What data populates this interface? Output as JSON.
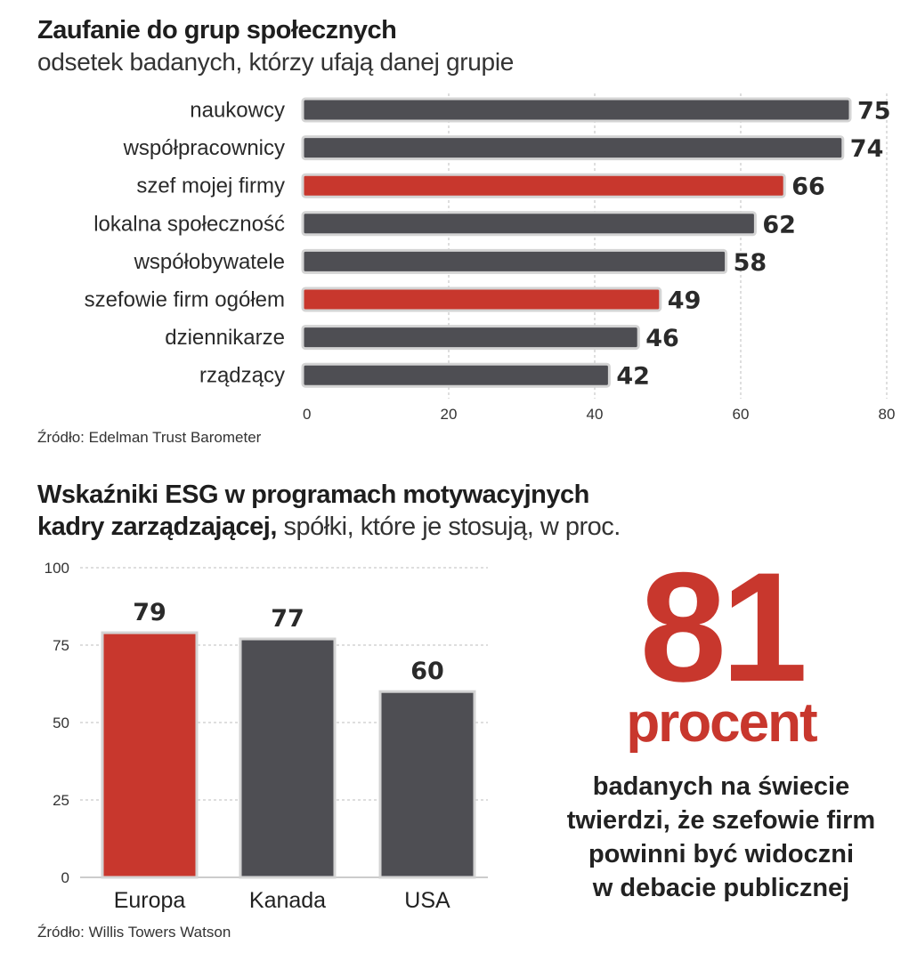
{
  "chart_data": [
    {
      "type": "bar",
      "orientation": "horizontal",
      "title": "Zaufanie do grup społecznych",
      "subtitle": "odsetek badanych, którzy ufają danej grupie",
      "categories": [
        "naukowcy",
        "współpracownicy",
        "szef mojej firmy",
        "lokalna społeczność",
        "współobywatele",
        "szefowie firm ogółem",
        "dziennikarze",
        "rządzący"
      ],
      "values": [
        75,
        74,
        66,
        62,
        58,
        49,
        46,
        42
      ],
      "highlighted": [
        false,
        false,
        true,
        false,
        false,
        true,
        false,
        false
      ],
      "xlim": [
        0,
        80
      ],
      "xticks": [
        "0",
        "20",
        "40",
        "60",
        "80"
      ],
      "grid": "vertical dashed",
      "source": "Źródło: Edelman Trust Barometer"
    },
    {
      "type": "bar",
      "orientation": "vertical",
      "title_bold": "Wskaźniki ESG w programach motywacyjnych kadry zarządzającej,",
      "title_rest": "spółki, które je stosują, w proc.",
      "categories": [
        "Europa",
        "Kanada",
        "USA"
      ],
      "values": [
        79,
        77,
        60
      ],
      "highlighted": [
        true,
        false,
        false
      ],
      "ylim": [
        0,
        100
      ],
      "yticks": [
        "100",
        "75",
        "50",
        "25",
        "0"
      ],
      "grid": "horizontal dashed",
      "source": "Źródło: Willis Towers Watson"
    }
  ],
  "callout": {
    "number": "81",
    "unit": "procent",
    "lines": [
      "badanych na świecie",
      "twierdzi, że szefowie firm",
      "powinni być widoczni",
      "w debacie publicznej"
    ]
  },
  "text": {
    "title2_line1": "Wskaźniki ESG w programach motywacyjnych",
    "title2_line2_bold": "kadry zarządzającej,",
    "title2_line2_rest": " spółki, które je stosują, w proc."
  },
  "colors": {
    "dark_bar": "#4e4e53",
    "accent_bar": "#c8372d",
    "bar_outline": "#d4d4d4",
    "text": "#2a2a2a"
  }
}
